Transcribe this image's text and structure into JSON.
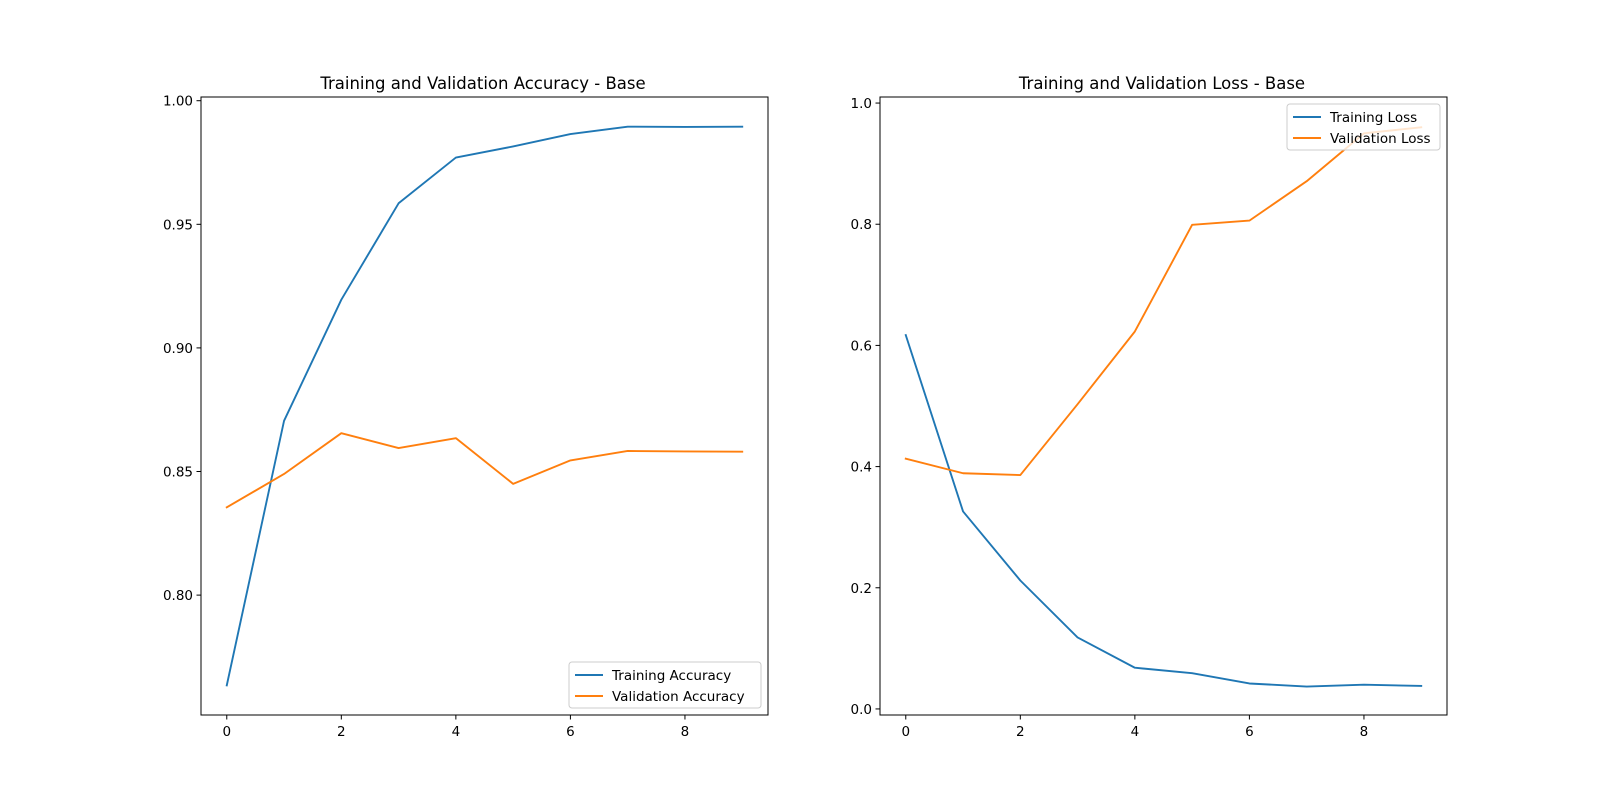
{
  "chart_data": [
    {
      "type": "line",
      "title": "Training and Validation Accuracy - Base",
      "xlabel": "",
      "ylabel": "",
      "x": [
        0,
        1,
        2,
        3,
        4,
        5,
        6,
        7,
        8,
        9
      ],
      "xlim": [
        -0.45,
        9.45
      ],
      "ylim": [
        0.7515,
        1.0015
      ],
      "xticks": [
        0,
        2,
        4,
        6,
        8
      ],
      "yticks": [
        0.8,
        0.85,
        0.9,
        0.95,
        1.0
      ],
      "xtick_labels": [
        "0",
        "2",
        "4",
        "6",
        "8"
      ],
      "ytick_labels": [
        "0.80",
        "0.85",
        "0.90",
        "0.95",
        "1.00"
      ],
      "grid": false,
      "legend_position": "lower-right",
      "series": [
        {
          "name": "Training Accuracy",
          "color": "#1f77b4",
          "values": [
            0.7635,
            0.8705,
            0.9195,
            0.9585,
            0.977,
            0.9815,
            0.9865,
            0.9895,
            0.9894,
            0.9895
          ]
        },
        {
          "name": "Validation Accuracy",
          "color": "#ff7f0e",
          "values": [
            0.8355,
            0.849,
            0.8655,
            0.8595,
            0.8635,
            0.845,
            0.8545,
            0.8583,
            0.8581,
            0.858
          ]
        }
      ]
    },
    {
      "type": "line",
      "title": "Training and Validation Loss - Base",
      "xlabel": "",
      "ylabel": "",
      "x": [
        0,
        1,
        2,
        3,
        4,
        5,
        6,
        7,
        8,
        9
      ],
      "xlim": [
        -0.45,
        9.45
      ],
      "ylim": [
        -0.01,
        1.01
      ],
      "xticks": [
        0,
        2,
        4,
        6,
        8
      ],
      "yticks": [
        0.0,
        0.2,
        0.4,
        0.6,
        0.8,
        1.0
      ],
      "xtick_labels": [
        "0",
        "2",
        "4",
        "6",
        "8"
      ],
      "ytick_labels": [
        "0.0",
        "0.2",
        "0.4",
        "0.6",
        "0.8",
        "1.0"
      ],
      "grid": false,
      "legend_position": "upper-right",
      "series": [
        {
          "name": "Training Loss",
          "color": "#1f77b4",
          "values": [
            0.617,
            0.326,
            0.212,
            0.118,
            0.068,
            0.059,
            0.042,
            0.037,
            0.04,
            0.038
          ]
        },
        {
          "name": "Validation Loss",
          "color": "#ff7f0e",
          "values": [
            0.413,
            0.389,
            0.386,
            0.503,
            0.623,
            0.799,
            0.806,
            0.871,
            0.95,
            0.96
          ]
        }
      ]
    }
  ]
}
